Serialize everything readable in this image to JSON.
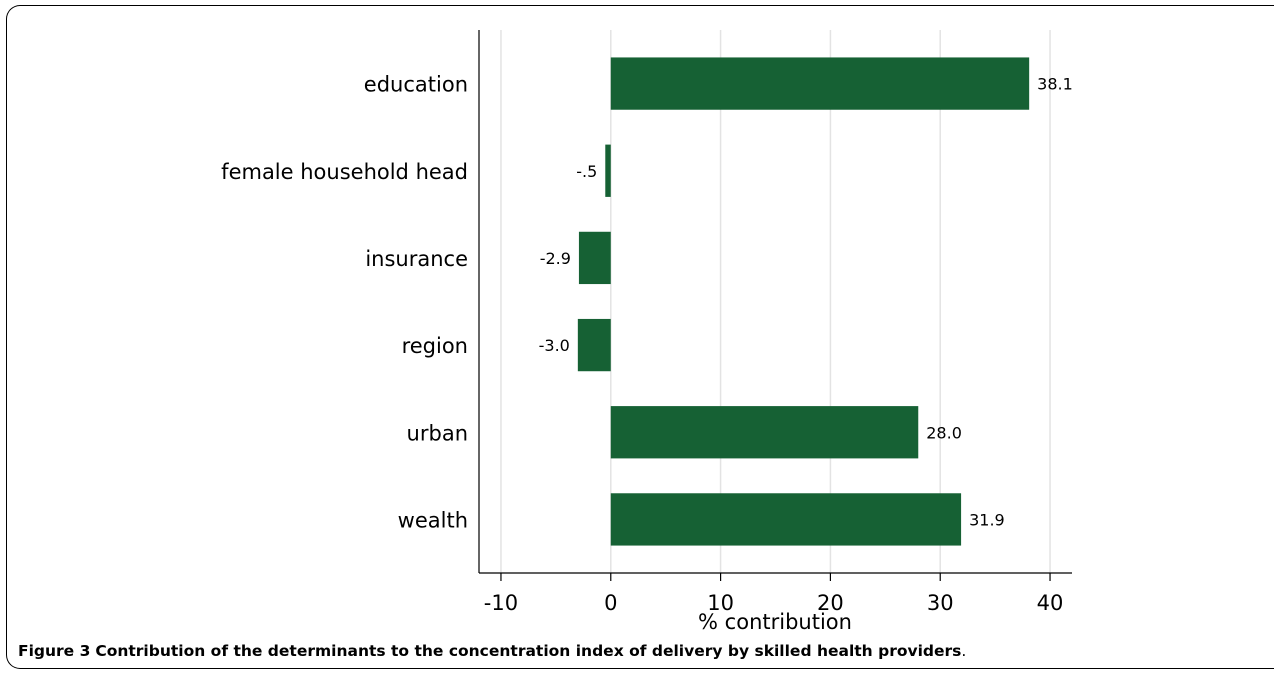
{
  "caption": {
    "label": "Figure 3",
    "text": "Contribution of the determinants to the concentration index of delivery by skilled health providers",
    "end": "."
  },
  "colors": {
    "bar": "#166134",
    "grid": "#e3e3e3",
    "axis": "#000000"
  },
  "chart_data": {
    "type": "bar",
    "orientation": "horizontal",
    "categories": [
      "education",
      "female household head",
      "insurance",
      "region",
      "urban",
      "wealth"
    ],
    "values": [
      38.1,
      -0.5,
      -2.9,
      -3.0,
      28.0,
      31.9
    ],
    "value_labels": [
      "38.1",
      "-.5",
      "-2.9",
      "-3.0",
      "28.0",
      "31.9"
    ],
    "xlabel": "% contribution",
    "ylabel": "",
    "xlim": [
      -12,
      42
    ],
    "xticks": [
      -10,
      0,
      10,
      20,
      30,
      40
    ],
    "xtick_labels": [
      "-10",
      "0",
      "10",
      "20",
      "30",
      "40"
    ],
    "grid": "vertical"
  }
}
